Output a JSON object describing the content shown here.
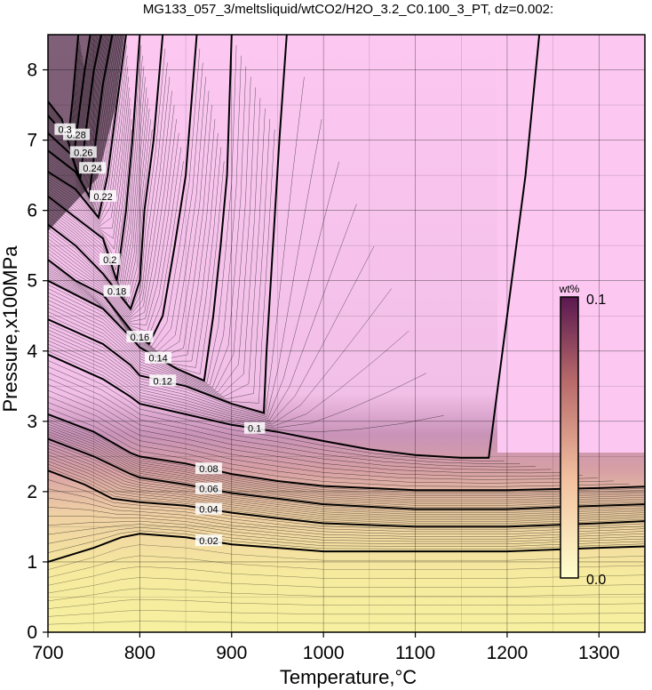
{
  "chart_data": {
    "type": "heatmap",
    "title": "MG133_057_3/meltsliquid/wtCO2/H2O_3.2_C0.100_3_PT, dz=0.002:",
    "xlabel": "Temperature,°C",
    "ylabel": "Pressure,x100MPa",
    "xlim": [
      700,
      1350
    ],
    "ylim": [
      0,
      8.5
    ],
    "x_ticks": [
      "700",
      "800",
      "900",
      "1000",
      "1100",
      "1200",
      "1300"
    ],
    "y_ticks": [
      "0",
      "1",
      "2",
      "3",
      "4",
      "5",
      "6",
      "7",
      "8"
    ],
    "grid": true,
    "colorbar": {
      "unit": "wt%",
      "min": 0.0,
      "max": 0.1,
      "min_label": "0.0",
      "max_label": "0.1",
      "colors": [
        "#ffffcc",
        "#f2c1a0",
        "#b86a6a",
        "#5a1850"
      ]
    },
    "contour_interval": 0.002,
    "contour_lines": [
      {
        "level": 0.02,
        "label": "0.02",
        "points": [
          [
            700,
            1.0
          ],
          [
            750,
            1.2
          ],
          [
            780,
            1.35
          ],
          [
            800,
            1.4
          ],
          [
            850,
            1.35
          ],
          [
            900,
            1.25
          ],
          [
            950,
            1.2
          ],
          [
            1000,
            1.15
          ],
          [
            1100,
            1.15
          ],
          [
            1200,
            1.15
          ],
          [
            1300,
            1.2
          ],
          [
            1350,
            1.22
          ]
        ]
      },
      {
        "level": 0.04,
        "label": "0.04",
        "points": [
          [
            700,
            2.3
          ],
          [
            740,
            2.1
          ],
          [
            770,
            1.9
          ],
          [
            800,
            1.85
          ],
          [
            850,
            1.8
          ],
          [
            900,
            1.7
          ],
          [
            950,
            1.62
          ],
          [
            1000,
            1.55
          ],
          [
            1100,
            1.5
          ],
          [
            1200,
            1.5
          ],
          [
            1300,
            1.55
          ],
          [
            1350,
            1.58
          ]
        ]
      },
      {
        "level": 0.06,
        "label": "0.06",
        "points": [
          [
            700,
            2.75
          ],
          [
            750,
            2.5
          ],
          [
            790,
            2.25
          ],
          [
            800,
            2.2
          ],
          [
            850,
            2.1
          ],
          [
            900,
            1.98
          ],
          [
            950,
            1.9
          ],
          [
            1000,
            1.82
          ],
          [
            1100,
            1.75
          ],
          [
            1200,
            1.75
          ],
          [
            1300,
            1.8
          ],
          [
            1350,
            1.82
          ]
        ]
      },
      {
        "level": 0.08,
        "label": "0.08",
        "points": [
          [
            700,
            3.1
          ],
          [
            750,
            2.85
          ],
          [
            790,
            2.55
          ],
          [
            800,
            2.5
          ],
          [
            850,
            2.4
          ],
          [
            900,
            2.25
          ],
          [
            950,
            2.15
          ],
          [
            1000,
            2.08
          ],
          [
            1100,
            2.02
          ],
          [
            1200,
            2.02
          ],
          [
            1300,
            2.05
          ],
          [
            1350,
            2.07
          ]
        ]
      },
      {
        "level": 0.1,
        "label": "0.1",
        "points": [
          [
            700,
            3.95
          ],
          [
            760,
            3.6
          ],
          [
            790,
            3.35
          ],
          [
            800,
            3.25
          ],
          [
            850,
            3.1
          ],
          [
            900,
            2.95
          ],
          [
            950,
            2.85
          ],
          [
            1000,
            2.72
          ],
          [
            1050,
            2.6
          ],
          [
            1100,
            2.52
          ],
          [
            1150,
            2.48
          ],
          [
            1180,
            2.48
          ],
          [
            1190,
            3.5
          ],
          [
            1200,
            4.5
          ],
          [
            1220,
            6.5
          ],
          [
            1235,
            8.5
          ]
        ]
      },
      {
        "level": 0.12,
        "label": "0.12",
        "points": [
          [
            700,
            4.45
          ],
          [
            760,
            4.1
          ],
          [
            790,
            3.8
          ],
          [
            800,
            3.65
          ],
          [
            850,
            3.5
          ],
          [
            900,
            3.25
          ],
          [
            935,
            3.12
          ],
          [
            938,
            4.0
          ],
          [
            945,
            5.5
          ],
          [
            952,
            7.0
          ],
          [
            960,
            8.5
          ]
        ]
      },
      {
        "level": 0.14,
        "label": "0.14",
        "points": [
          [
            700,
            5.0
          ],
          [
            760,
            4.6
          ],
          [
            790,
            4.2
          ],
          [
            800,
            4.05
          ],
          [
            840,
            3.75
          ],
          [
            870,
            3.58
          ],
          [
            880,
            4.5
          ],
          [
            888,
            5.5
          ],
          [
            895,
            6.5
          ],
          [
            900,
            8.5
          ]
        ]
      },
      {
        "level": 0.16,
        "label": "0.16",
        "points": [
          [
            700,
            5.3
          ],
          [
            730,
            5.0
          ],
          [
            760,
            4.8
          ],
          [
            790,
            4.3
          ],
          [
            810,
            4.1
          ],
          [
            825,
            4.5
          ],
          [
            838,
            5.5
          ],
          [
            850,
            6.5
          ],
          [
            862,
            8.5
          ]
        ]
      },
      {
        "level": 0.18,
        "label": "0.18",
        "points": [
          [
            700,
            5.8
          ],
          [
            730,
            5.5
          ],
          [
            760,
            5.1
          ],
          [
            790,
            4.6
          ],
          [
            800,
            5.0
          ],
          [
            805,
            6.0
          ],
          [
            815,
            7.0
          ],
          [
            825,
            8.5
          ]
        ]
      },
      {
        "level": 0.2,
        "label": "0.2",
        "points": [
          [
            700,
            6.2
          ],
          [
            730,
            5.9
          ],
          [
            760,
            5.6
          ],
          [
            775,
            5.0
          ],
          [
            785,
            6.0
          ],
          [
            792,
            7.0
          ],
          [
            800,
            8.5
          ]
        ]
      },
      {
        "level": 0.22,
        "label": "0.22",
        "points": [
          [
            700,
            6.55
          ],
          [
            730,
            6.3
          ],
          [
            755,
            5.9
          ],
          [
            765,
            6.5
          ],
          [
            775,
            7.5
          ],
          [
            785,
            8.5
          ]
        ]
      },
      {
        "level": 0.24,
        "label": "0.24",
        "points": [
          [
            700,
            6.85
          ],
          [
            730,
            6.55
          ],
          [
            745,
            6.2
          ],
          [
            752,
            7.0
          ],
          [
            760,
            7.8
          ],
          [
            770,
            8.5
          ]
        ]
      },
      {
        "level": 0.26,
        "label": "0.26",
        "points": [
          [
            700,
            7.1
          ],
          [
            725,
            6.8
          ],
          [
            735,
            6.45
          ],
          [
            742,
            7.2
          ],
          [
            750,
            8.0
          ],
          [
            758,
            8.5
          ]
        ]
      },
      {
        "level": 0.28,
        "label": "0.28",
        "points": [
          [
            700,
            7.35
          ],
          [
            720,
            7.05
          ],
          [
            728,
            6.75
          ],
          [
            734,
            7.4
          ],
          [
            740,
            8.0
          ],
          [
            746,
            8.5
          ]
        ]
      },
      {
        "level": 0.3,
        "label": "0.3",
        "points": [
          [
            700,
            7.55
          ],
          [
            715,
            7.3
          ],
          [
            722,
            7.0
          ],
          [
            727,
            7.6
          ],
          [
            733,
            8.5
          ]
        ]
      }
    ]
  }
}
